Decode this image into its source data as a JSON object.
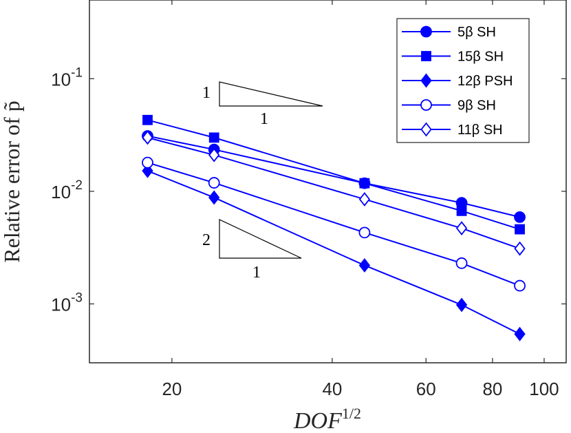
{
  "chart_data": {
    "type": "line",
    "scale": {
      "x": "log",
      "y": "log"
    },
    "xlim": [
      14,
      110
    ],
    "ylim": [
      0.0003,
      0.5
    ],
    "xlabel": "DOF",
    "xlabel_sup": "1/2",
    "ylabel": "Relative error of p̃",
    "xticks": [
      {
        "value": 20,
        "label": "20"
      },
      {
        "value": 40,
        "label": "40"
      },
      {
        "value": 60,
        "label": "60"
      },
      {
        "value": 80,
        "label": "80"
      },
      {
        "value": 100,
        "label": "100"
      }
    ],
    "yticks": [
      {
        "value": 0.1,
        "base": "10",
        "exp": "-1"
      },
      {
        "value": 0.01,
        "base": "10",
        "exp": "-2"
      },
      {
        "value": 0.001,
        "base": "10",
        "exp": "-3"
      }
    ],
    "x": [
      18,
      24,
      46,
      70,
      90
    ],
    "series": [
      {
        "name": "5β SH",
        "marker": "circle",
        "filled": true,
        "values": [
          0.031,
          0.0235,
          0.0118,
          0.0079,
          0.0059
        ]
      },
      {
        "name": "15β SH",
        "marker": "square",
        "filled": true,
        "values": [
          0.043,
          0.03,
          0.0118,
          0.0067,
          0.0046
        ]
      },
      {
        "name": "12β PSH",
        "marker": "diamond",
        "filled": true,
        "values": [
          0.0152,
          0.0088,
          0.0022,
          0.00098,
          0.00054
        ]
      },
      {
        "name": "9β SH",
        "marker": "circle",
        "filled": false,
        "values": [
          0.018,
          0.0119,
          0.0043,
          0.0023,
          0.00145
        ]
      },
      {
        "name": "11β SH",
        "marker": "diamond",
        "filled": false,
        "values": [
          0.03,
          0.021,
          0.0085,
          0.0047,
          0.0031
        ]
      }
    ],
    "slope_triangles": [
      {
        "rise_label": "1",
        "run_label": "1"
      },
      {
        "rise_label": "2",
        "run_label": "1"
      }
    ],
    "legend_position": "top-right",
    "series_color": "#0000ff"
  }
}
